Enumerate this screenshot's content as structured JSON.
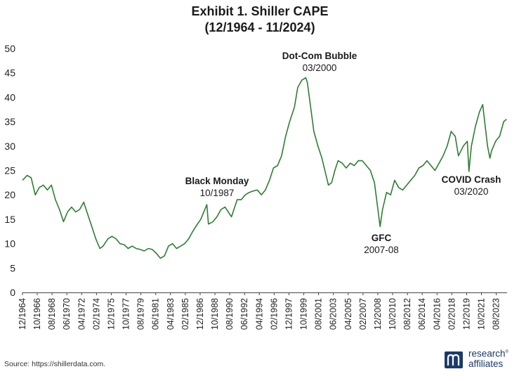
{
  "chart_data": {
    "type": "line",
    "title": "Exhibit 1. Shiller CAPE",
    "subtitle": "(12/1964 - 11/2024)",
    "xlabel": "",
    "ylabel": "",
    "ylim": [
      0,
      50
    ],
    "yticks": [
      "0",
      "5",
      "10",
      "15",
      "20",
      "25",
      "30",
      "35",
      "40",
      "45",
      "50"
    ],
    "xticks": [
      "12/1964",
      "10/1966",
      "08/1968",
      "06/1970",
      "04/1972",
      "02/1974",
      "12/1975",
      "10/1977",
      "08/1979",
      "06/1981",
      "04/1983",
      "02/1985",
      "12/1986",
      "10/1988",
      "08/1990",
      "06/1992",
      "04/1994",
      "02/1996",
      "12/1997",
      "10/1999",
      "08/2001",
      "06/2003",
      "04/2005",
      "02/2007",
      "12/2008",
      "10/2010",
      "08/2012",
      "06/2014",
      "04/2016",
      "02/2018",
      "12/2019",
      "10/2021",
      "08/2023"
    ],
    "grid": false,
    "line_color": "#2e7d32",
    "series": [
      {
        "x": [
          1964.92,
          1965.5,
          1966.0,
          1966.5,
          1967.0,
          1967.5,
          1968.0,
          1968.5,
          1969.0,
          1969.5,
          1970.0,
          1970.5,
          1971.0,
          1971.5,
          1972.0,
          1972.5,
          1973.0,
          1973.5,
          1974.0,
          1974.5,
          1974.9,
          1975.5,
          1976.0,
          1976.5,
          1977.0,
          1977.5,
          1978.0,
          1978.5,
          1979.0,
          1979.5,
          1980.0,
          1980.5,
          1981.0,
          1981.5,
          1982.0,
          1982.5,
          1983.0,
          1983.5,
          1984.0,
          1984.5,
          1985.0,
          1985.5,
          1986.0,
          1986.5,
          1987.0,
          1987.75,
          1987.95,
          1988.5,
          1989.0,
          1989.5,
          1990.0,
          1990.8,
          1991.5,
          1992.0,
          1992.5,
          1993.0,
          1993.5,
          1994.0,
          1994.5,
          1995.0,
          1995.5,
          1996.0,
          1996.5,
          1997.0,
          1997.5,
          1998.0,
          1998.6,
          1999.0,
          1999.5,
          2000.0,
          2000.2,
          2000.6,
          2001.0,
          2001.5,
          2002.0,
          2002.8,
          2003.2,
          2003.6,
          2004.0,
          2004.5,
          2005.0,
          2005.5,
          2006.0,
          2006.5,
          2007.0,
          2007.5,
          2008.0,
          2008.5,
          2009.2,
          2009.5,
          2010.0,
          2010.5,
          2011.0,
          2011.5,
          2012.0,
          2012.5,
          2013.0,
          2013.5,
          2014.0,
          2014.5,
          2015.0,
          2015.5,
          2016.0,
          2016.5,
          2017.0,
          2017.5,
          2018.0,
          2018.5,
          2018.9,
          2019.5,
          2020.0,
          2020.2,
          2020.5,
          2021.0,
          2021.5,
          2021.9,
          2022.5,
          2022.8,
          2023.0,
          2023.5,
          2024.0,
          2024.5,
          2024.85
        ],
        "y": [
          23.0,
          24.0,
          23.5,
          20.0,
          21.5,
          22.0,
          21.0,
          22.0,
          19.0,
          17.0,
          14.5,
          16.5,
          17.5,
          16.5,
          17.0,
          18.5,
          16.0,
          13.5,
          11.0,
          9.0,
          9.5,
          11.0,
          11.5,
          11.0,
          10.0,
          9.8,
          9.0,
          9.5,
          9.0,
          8.8,
          8.5,
          9.0,
          8.8,
          8.0,
          7.0,
          7.5,
          9.5,
          10.0,
          9.0,
          9.5,
          10.0,
          11.0,
          12.5,
          13.8,
          15.0,
          18.0,
          14.0,
          14.5,
          15.5,
          17.0,
          17.5,
          15.5,
          19.0,
          19.0,
          20.0,
          20.5,
          20.8,
          21.0,
          20.0,
          21.0,
          23.0,
          25.5,
          26.0,
          28.0,
          32.0,
          35.0,
          38.0,
          42.0,
          43.5,
          44.0,
          43.0,
          38.0,
          33.0,
          30.0,
          27.5,
          22.0,
          22.5,
          25.0,
          27.0,
          26.5,
          25.5,
          26.5,
          26.0,
          27.0,
          27.0,
          26.0,
          25.0,
          22.5,
          13.5,
          17.0,
          20.5,
          20.0,
          23.0,
          21.5,
          21.0,
          22.0,
          23.0,
          24.0,
          25.5,
          26.0,
          27.0,
          26.0,
          25.0,
          26.5,
          28.0,
          30.0,
          33.0,
          32.0,
          28.0,
          30.0,
          31.0,
          24.8,
          30.0,
          34.0,
          37.0,
          38.5,
          30.0,
          27.5,
          29.0,
          31.0,
          32.0,
          35.0,
          35.5
        ]
      }
    ],
    "annotations": [
      {
        "name": "black-monday",
        "lines": [
          "Black Monday",
          "10/1987"
        ]
      },
      {
        "name": "dot-com",
        "lines": [
          "Dot-Com Bubble",
          "03/2000"
        ]
      },
      {
        "name": "gfc",
        "lines": [
          "GFC",
          "2007-08"
        ]
      },
      {
        "name": "covid",
        "lines": [
          "COVID Crash",
          "03/2020"
        ]
      }
    ]
  },
  "footer": {
    "source": "Source: https://shillerdata.com.",
    "logo_line1": "research",
    "logo_line2": "affiliates",
    "logo_mark": "®"
  }
}
